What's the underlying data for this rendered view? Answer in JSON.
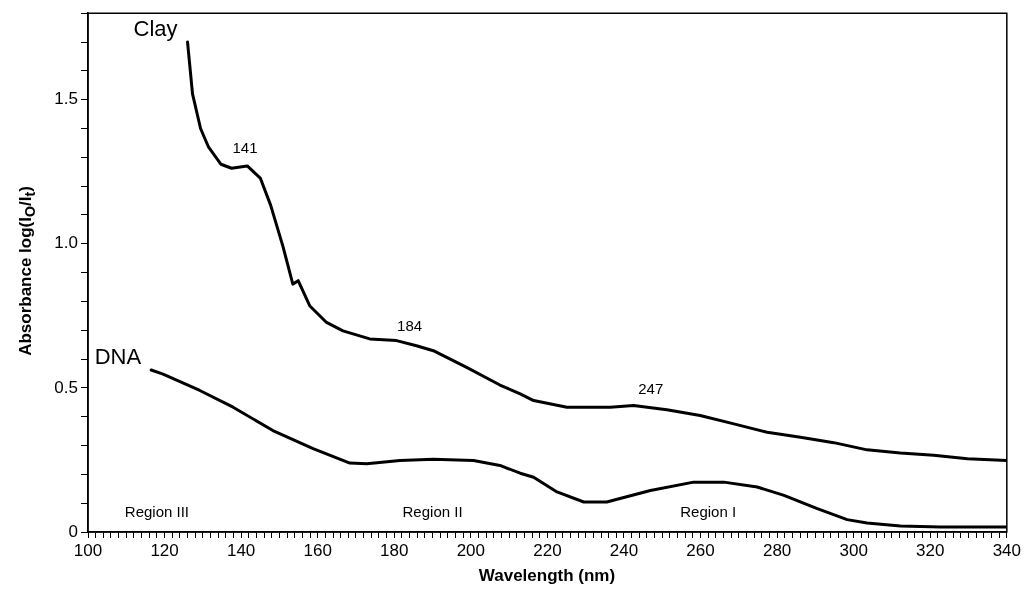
{
  "chart_data": {
    "type": "line",
    "xlabel": "Wavelength (nm)",
    "ylabel": "Absorbance log(I$_{O}$/I$_{t}$)",
    "marker": "none",
    "line_style": "solid",
    "xlim": [
      100,
      340
    ],
    "ylim": [
      0,
      1.8
    ],
    "xticks": [
      100,
      {
        "value": 102,
        "label": null
      },
      {
        "value": 104,
        "label": null
      },
      {
        "value": 106,
        "label": null
      },
      {
        "value": 108,
        "label": null
      },
      {
        "value": 110,
        "label": null
      },
      {
        "value": 112,
        "label": null
      },
      {
        "value": 114,
        "label": null
      },
      {
        "value": 116,
        "label": null
      },
      {
        "value": 118,
        "label": null
      },
      120,
      {
        "value": 122,
        "label": null
      },
      {
        "value": 124,
        "label": null
      },
      {
        "value": 126,
        "label": null
      },
      {
        "value": 128,
        "label": null
      },
      {
        "value": 130,
        "label": null
      },
      {
        "value": 132,
        "label": null
      },
      {
        "value": 134,
        "label": null
      },
      {
        "value": 136,
        "label": null
      },
      {
        "value": 138,
        "label": null
      },
      140,
      {
        "value": 142,
        "label": null
      },
      {
        "value": 144,
        "label": null
      },
      {
        "value": 146,
        "label": null
      },
      {
        "value": 148,
        "label": null
      },
      {
        "value": 150,
        "label": null
      },
      {
        "value": 152,
        "label": null
      },
      {
        "value": 154,
        "label": null
      },
      {
        "value": 156,
        "label": null
      },
      {
        "value": 158,
        "label": null
      },
      160,
      {
        "value": 162,
        "label": null
      },
      {
        "value": 164,
        "label": null
      },
      {
        "value": 166,
        "label": null
      },
      {
        "value": 168,
        "label": null
      },
      {
        "value": 170,
        "label": null
      },
      {
        "value": 172,
        "label": null
      },
      {
        "value": 174,
        "label": null
      },
      {
        "value": 176,
        "label": null
      },
      {
        "value": 178,
        "label": null
      },
      180,
      {
        "value": 182,
        "label": null
      },
      {
        "value": 184,
        "label": null
      },
      {
        "value": 186,
        "label": null
      },
      {
        "value": 188,
        "label": null
      },
      {
        "value": 190,
        "label": null
      },
      {
        "value": 192,
        "label": null
      },
      {
        "value": 194,
        "label": null
      },
      {
        "value": 196,
        "label": null
      },
      {
        "value": 198,
        "label": null
      },
      200,
      {
        "value": 202,
        "label": null
      },
      {
        "value": 204,
        "label": null
      },
      {
        "value": 206,
        "label": null
      },
      {
        "value": 208,
        "label": null
      },
      {
        "value": 210,
        "label": null
      },
      {
        "value": 212,
        "label": null
      },
      {
        "value": 214,
        "label": null
      },
      {
        "value": 216,
        "label": null
      },
      {
        "value": 218,
        "label": null
      },
      220,
      {
        "value": 222,
        "label": null
      },
      {
        "value": 224,
        "label": null
      },
      {
        "value": 226,
        "label": null
      },
      {
        "value": 228,
        "label": null
      },
      {
        "value": 230,
        "label": null
      },
      {
        "value": 232,
        "label": null
      },
      {
        "value": 234,
        "label": null
      },
      {
        "value": 236,
        "label": null
      },
      {
        "value": 238,
        "label": null
      },
      240,
      {
        "value": 242,
        "label": null
      },
      {
        "value": 244,
        "label": null
      },
      {
        "value": 246,
        "label": null
      },
      {
        "value": 248,
        "label": null
      },
      {
        "value": 250,
        "label": null
      },
      {
        "value": 252,
        "label": null
      },
      {
        "value": 254,
        "label": null
      },
      {
        "value": 256,
        "label": null
      },
      {
        "value": 258,
        "label": null
      },
      260,
      {
        "value": 262,
        "label": null
      },
      {
        "value": 264,
        "label": null
      },
      {
        "value": 266,
        "label": null
      },
      {
        "value": 268,
        "label": null
      },
      {
        "value": 270,
        "label": null
      },
      {
        "value": 272,
        "label": null
      },
      {
        "value": 274,
        "label": null
      },
      {
        "value": 276,
        "label": null
      },
      {
        "value": 278,
        "label": null
      },
      280,
      {
        "value": 282,
        "label": null
      },
      {
        "value": 284,
        "label": null
      },
      {
        "value": 286,
        "label": null
      },
      {
        "value": 288,
        "label": null
      },
      {
        "value": 290,
        "label": null
      },
      {
        "value": 292,
        "label": null
      },
      {
        "value": 294,
        "label": null
      },
      {
        "value": 296,
        "label": null
      },
      {
        "value": 298,
        "label": null
      },
      300,
      {
        "value": 302,
        "label": null
      },
      {
        "value": 304,
        "label": null
      },
      {
        "value": 306,
        "label": null
      },
      {
        "value": 308,
        "label": null
      },
      {
        "value": 310,
        "label": null
      },
      {
        "value": 312,
        "label": null
      },
      {
        "value": 314,
        "label": null
      },
      {
        "value": 316,
        "label": null
      },
      {
        "value": 318,
        "label": null
      },
      320,
      {
        "value": 322,
        "label": null
      },
      {
        "value": 324,
        "label": null
      },
      {
        "value": 326,
        "label": null
      },
      {
        "value": 328,
        "label": null
      },
      {
        "value": 330,
        "label": null
      },
      {
        "value": 332,
        "label": null
      },
      {
        "value": 334,
        "label": null
      },
      {
        "value": 336,
        "label": null
      },
      {
        "value": 338,
        "label": null
      },
      340
    ],
    "yticks": [
      0,
      {
        "value": 0.1,
        "label": null
      },
      {
        "value": 0.2,
        "label": null
      },
      {
        "value": 0.3,
        "label": null
      },
      {
        "value": 0.4,
        "label": null
      },
      0.5,
      {
        "value": 0.6,
        "label": null
      },
      {
        "value": 0.7,
        "label": null
      },
      {
        "value": 0.8,
        "label": null
      },
      {
        "value": 0.9,
        "label": null
      },
      {
        "value": 1.0,
        "label": "1.0"
      },
      {
        "value": 1.1,
        "label": null
      },
      {
        "value": 1.2,
        "label": null
      },
      {
        "value": 1.3,
        "label": null
      },
      {
        "value": 1.4,
        "label": null
      },
      1.5,
      {
        "value": 1.6,
        "label": null
      },
      {
        "value": 1.7,
        "label": null
      },
      {
        "value": 1.8,
        "label": null
      }
    ],
    "series": [
      {
        "name": "Clay",
        "color": "#000000",
        "x": [
          126,
          127.3,
          129.4,
          131.5,
          134.7,
          137.5,
          141.6,
          145,
          147.7,
          150.9,
          153.5,
          154.9,
          157.9,
          162.3,
          166.6,
          173.6,
          180.6,
          185.8,
          190.2,
          198.9,
          207.6,
          212.9,
          216.4,
          225.1,
          236.4,
          242.5,
          251.2,
          259.9,
          268.7,
          277.4,
          286.1,
          294.8,
          303.5,
          312.2,
          320.9,
          329.7,
          340
        ],
        "values": [
          1.7,
          1.52,
          1.4,
          1.335,
          1.276,
          1.262,
          1.27,
          1.228,
          1.134,
          0.992,
          0.86,
          0.872,
          0.785,
          0.727,
          0.698,
          0.67,
          0.664,
          0.646,
          0.629,
          0.571,
          0.51,
          0.479,
          0.456,
          0.433,
          0.433,
          0.439,
          0.424,
          0.404,
          0.375,
          0.346,
          0.329,
          0.31,
          0.285,
          0.274,
          0.266,
          0.254,
          0.248
        ]
      },
      {
        "name": "DNA",
        "color": "#000000",
        "x": [
          116.5,
          119.6,
          129.2,
          137.9,
          148.3,
          158.8,
          168.4,
          172.8,
          181.5,
          190.2,
          200.7,
          207.6,
          212.9,
          216.4,
          222.5,
          229.5,
          235.5,
          246.9,
          258.2,
          266.1,
          274.8,
          281.8,
          290.5,
          298.3,
          303.5,
          312.2,
          322.7,
          340
        ],
        "values": [
          0.562,
          0.548,
          0.491,
          0.433,
          0.352,
          0.289,
          0.239,
          0.237,
          0.248,
          0.252,
          0.248,
          0.231,
          0.204,
          0.19,
          0.139,
          0.104,
          0.104,
          0.144,
          0.173,
          0.173,
          0.156,
          0.127,
          0.081,
          0.043,
          0.031,
          0.021,
          0.017,
          0.017
        ]
      }
    ],
    "annotations": [
      {
        "text": "141",
        "x": 141,
        "y": 1.27
      },
      {
        "text": "184",
        "x": 184,
        "y": 0.65
      },
      {
        "text": "247",
        "x": 247,
        "y": 0.432
      },
      "Region III",
      "Region II",
      "Region I"
    ]
  }
}
